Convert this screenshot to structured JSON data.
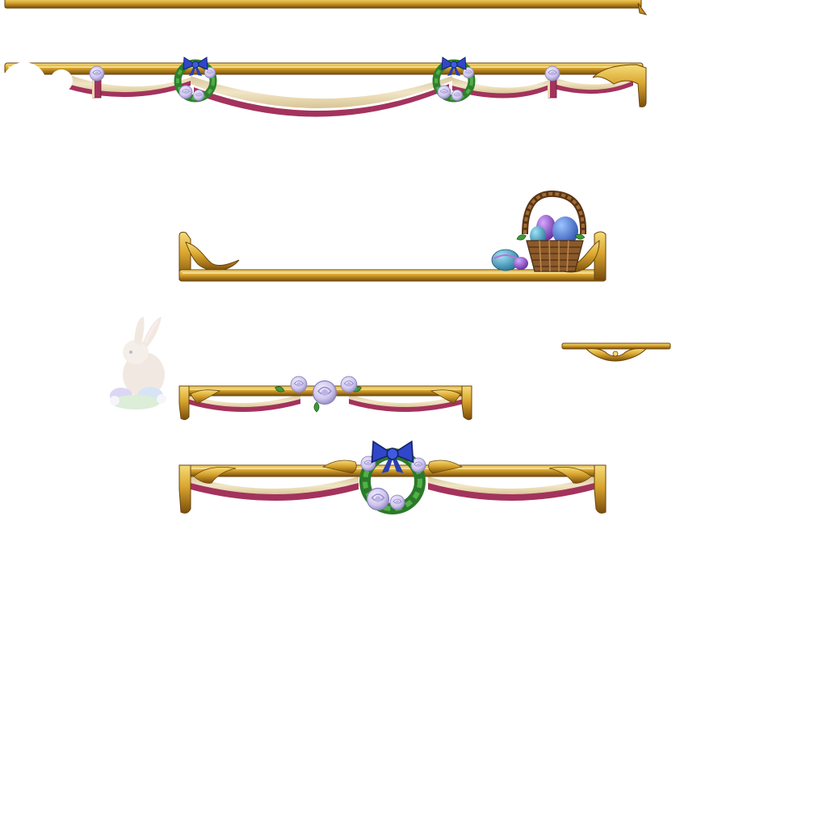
{
  "sheet": {
    "background": "#ffffff",
    "colors": {
      "gold_light": "#f3d36a",
      "gold": "#d6a12a",
      "gold_dark": "#8a5a10",
      "gold_shadow": "#5e3a08",
      "drape_cream": "#efe2bd",
      "drape_shade": "#cdb98e",
      "drape_trim": "#a3335c",
      "drape_trim_dark": "#6f1a3a",
      "ribbon_blue": "#2f47c8",
      "ribbon_blue_dark": "#1b2a86",
      "leaf_green": "#3f9a3a",
      "leaf_dark": "#226624",
      "rose_lavender": "#d9d4ef",
      "rose_shade": "#a59bcf",
      "basket_brown": "#8b5a2b",
      "basket_dark": "#5a3515",
      "egg_teal": "#3fa6c9",
      "egg_purple": "#8a49c4",
      "egg_blue": "#3e74d6",
      "bunny_fur": "#e3d2c2"
    },
    "sprites": [
      {
        "name": "plain-gold-bar",
        "icon": "gold-rail-icon"
      },
      {
        "name": "wreath-drape-wide-bar",
        "icon": "wreath-drape-icon"
      },
      {
        "name": "egg-basket-frame",
        "icon": "easter-basket-icon"
      },
      {
        "name": "small-gold-bracket",
        "icon": "gold-scroll-icon"
      },
      {
        "name": "rose-drape-short-bar",
        "icon": "rose-drape-icon"
      },
      {
        "name": "wreath-bow-drape-bar",
        "icon": "wreath-bow-icon"
      },
      {
        "name": "easter-bunny",
        "icon": "bunny-icon"
      }
    ]
  }
}
